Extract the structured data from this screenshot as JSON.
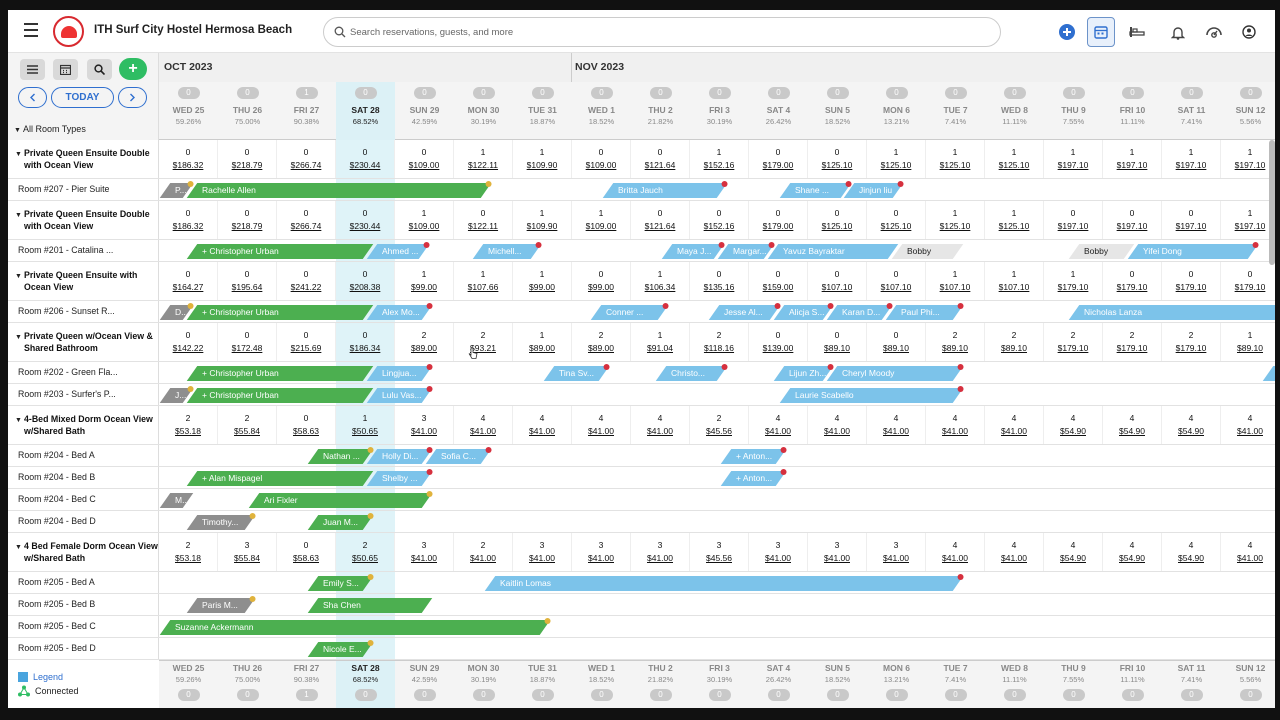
{
  "app": {
    "title": "ITH Surf City Hostel Hermosa Beach",
    "search_placeholder": "Search reservations, guests, and more"
  },
  "toolbar": {
    "today_label": "TODAY",
    "plus_label": "+",
    "filter_label": "All Room Types"
  },
  "months": [
    {
      "label": "OCT 2023"
    },
    {
      "label": "NOV 2023"
    }
  ],
  "days": [
    {
      "name": "WED 25",
      "pct": "59.26%",
      "count": "0"
    },
    {
      "name": "THU 26",
      "pct": "75.00%",
      "count": "0"
    },
    {
      "name": "FRI 27",
      "pct": "90.38%",
      "count": "1"
    },
    {
      "name": "SAT 28",
      "pct": "68.52%",
      "count": "0"
    },
    {
      "name": "SUN 29",
      "pct": "42.59%",
      "count": "0"
    },
    {
      "name": "MON 30",
      "pct": "30.19%",
      "count": "0"
    },
    {
      "name": "TUE 31",
      "pct": "18.87%",
      "count": "0"
    },
    {
      "name": "WED 1",
      "pct": "18.52%",
      "count": "0"
    },
    {
      "name": "THU 2",
      "pct": "21.82%",
      "count": "0"
    },
    {
      "name": "FRI 3",
      "pct": "30.19%",
      "count": "0"
    },
    {
      "name": "SAT 4",
      "pct": "26.42%",
      "count": "0"
    },
    {
      "name": "SUN 5",
      "pct": "18.52%",
      "count": "0"
    },
    {
      "name": "MON 6",
      "pct": "13.21%",
      "count": "0"
    },
    {
      "name": "TUE 7",
      "pct": "7.41%",
      "count": "0"
    },
    {
      "name": "WED 8",
      "pct": "11.11%",
      "count": "0"
    },
    {
      "name": "THU 9",
      "pct": "7.55%",
      "count": "0"
    },
    {
      "name": "FRI 10",
      "pct": "11.11%",
      "count": "0"
    },
    {
      "name": "SAT 11",
      "pct": "7.41%",
      "count": "0"
    },
    {
      "name": "SUN 12",
      "pct": "5.56%",
      "count": "0"
    }
  ],
  "today_index": 3,
  "rows": [
    {
      "kind": "type",
      "label": "Private Queen Ensuite Double with Ocean View",
      "h": 39,
      "cells": [
        [
          "0",
          "$186.32"
        ],
        [
          "0",
          "$218.79"
        ],
        [
          "0",
          "$266.74"
        ],
        [
          "0",
          "$230.44"
        ],
        [
          "0",
          "$109.00"
        ],
        [
          "1",
          "$122.11"
        ],
        [
          "1",
          "$109.90"
        ],
        [
          "0",
          "$109.00"
        ],
        [
          "0",
          "$121.64"
        ],
        [
          "1",
          "$152.16"
        ],
        [
          "0",
          "$179.00"
        ],
        [
          "0",
          "$125.10"
        ],
        [
          "1",
          "$125.10"
        ],
        [
          "1",
          "$125.10"
        ],
        [
          "1",
          "$125.10"
        ],
        [
          "1",
          "$197.10"
        ],
        [
          "1",
          "$197.10"
        ],
        [
          "1",
          "$197.10"
        ],
        [
          "1",
          "$197.10"
        ]
      ]
    },
    {
      "kind": "room",
      "label": "Room #207 - Pier Suite",
      "h": 22,
      "bars": [
        {
          "s": 0,
          "e": 0.45,
          "c": "gr",
          "t": "P...",
          "d": "y"
        },
        {
          "s": 0.45,
          "e": 5.5,
          "c": "g",
          "t": "Rachelle Allen",
          "d": "y"
        },
        {
          "s": 7.5,
          "e": 9.5,
          "c": "b",
          "t": "Britta Jauch",
          "d": "r"
        },
        {
          "s": 10.5,
          "e": 11.6,
          "c": "b",
          "t": "Shane ...",
          "d": "r"
        },
        {
          "s": 11.6,
          "e": 12.5,
          "c": "b",
          "t": "Jinjun liu",
          "d": "r"
        }
      ]
    },
    {
      "kind": "type",
      "label": "Private Queen Ensuite Double with Ocean View",
      "h": 39,
      "cells": [
        [
          "0",
          "$186.32"
        ],
        [
          "0",
          "$218.79"
        ],
        [
          "0",
          "$266.74"
        ],
        [
          "0",
          "$230.44"
        ],
        [
          "1",
          "$109.00"
        ],
        [
          "0",
          "$122.11"
        ],
        [
          "1",
          "$109.90"
        ],
        [
          "1",
          "$109.00"
        ],
        [
          "0",
          "$121.64"
        ],
        [
          "0",
          "$152.16"
        ],
        [
          "0",
          "$179.00"
        ],
        [
          "0",
          "$125.10"
        ],
        [
          "0",
          "$125.10"
        ],
        [
          "1",
          "$125.10"
        ],
        [
          "1",
          "$125.10"
        ],
        [
          "0",
          "$197.10"
        ],
        [
          "0",
          "$197.10"
        ],
        [
          "0",
          "$197.10"
        ],
        [
          "1",
          "$197.10"
        ]
      ]
    },
    {
      "kind": "room",
      "label": "Room #201 - Catalina ...",
      "h": 22,
      "bars": [
        {
          "s": 0.45,
          "e": 3.5,
          "c": "g",
          "t": "+ Christopher Urban"
        },
        {
          "s": 3.5,
          "e": 4.45,
          "c": "b",
          "t": "Ahmed ...",
          "d": "r"
        },
        {
          "s": 5.3,
          "e": 6.35,
          "c": "b",
          "t": "Michell...",
          "d": "r"
        },
        {
          "s": 8.5,
          "e": 9.45,
          "c": "b",
          "t": "Maya J...",
          "d": "r"
        },
        {
          "s": 9.45,
          "e": 10.3,
          "c": "b",
          "t": "Margar...",
          "d": "r"
        },
        {
          "s": 10.3,
          "e": 12.4,
          "c": "b",
          "t": "Yavuz Bayraktar"
        },
        {
          "s": 12.4,
          "e": 13.5,
          "c": "lg",
          "t": "Bobby"
        },
        {
          "s": 15.4,
          "e": 16.4,
          "c": "lg",
          "t": "Bobby"
        },
        {
          "s": 16.4,
          "e": 18.5,
          "c": "b",
          "t": "Yifei Dong",
          "d": "r"
        }
      ]
    },
    {
      "kind": "type",
      "label": "Private Queen Ensuite with Ocean View",
      "h": 39,
      "cells": [
        [
          "0",
          "$164.27"
        ],
        [
          "0",
          "$195.64"
        ],
        [
          "0",
          "$241.22"
        ],
        [
          "0",
          "$208.38"
        ],
        [
          "1",
          "$99.00"
        ],
        [
          "1",
          "$107.66"
        ],
        [
          "1",
          "$99.00"
        ],
        [
          "0",
          "$99.00"
        ],
        [
          "1",
          "$106.34"
        ],
        [
          "0",
          "$135.16"
        ],
        [
          "0",
          "$159.00"
        ],
        [
          "0",
          "$107.10"
        ],
        [
          "0",
          "$107.10"
        ],
        [
          "1",
          "$107.10"
        ],
        [
          "1",
          "$107.10"
        ],
        [
          "1",
          "$179.10"
        ],
        [
          "0",
          "$179.10"
        ],
        [
          "0",
          "$179.10"
        ],
        [
          "0",
          "$179.10"
        ]
      ]
    },
    {
      "kind": "room",
      "label": "Room #206 - Sunset R...",
      "h": 22,
      "bars": [
        {
          "s": 0,
          "e": 0.45,
          "c": "gr",
          "t": "D...",
          "d": "y"
        },
        {
          "s": 0.45,
          "e": 3.5,
          "c": "g",
          "t": "+ Christopher Urban"
        },
        {
          "s": 3.5,
          "e": 4.5,
          "c": "b",
          "t": "Alex Mo...",
          "d": "r"
        },
        {
          "s": 7.3,
          "e": 8.5,
          "c": "b",
          "t": "Conner ...",
          "d": "r"
        },
        {
          "s": 9.3,
          "e": 10.4,
          "c": "b",
          "t": "Jesse Al...",
          "d": "r"
        },
        {
          "s": 10.4,
          "e": 11.3,
          "c": "b",
          "t": "Alicja S...",
          "d": "r"
        },
        {
          "s": 11.3,
          "e": 12.3,
          "c": "b",
          "t": "Karan D...",
          "d": "r"
        },
        {
          "s": 12.3,
          "e": 13.5,
          "c": "b",
          "t": "Paul Phi...",
          "d": "r"
        },
        {
          "s": 15.4,
          "e": 19.2,
          "c": "b",
          "t": "Nicholas Lanza"
        }
      ]
    },
    {
      "kind": "type",
      "label": "Private Queen w/Ocean View & Shared Bathroom",
      "h": 39,
      "cells": [
        [
          "0",
          "$142.22"
        ],
        [
          "0",
          "$172.48"
        ],
        [
          "0",
          "$215.69"
        ],
        [
          "0",
          "$186.34"
        ],
        [
          "2",
          "$89.00"
        ],
        [
          "2",
          "$93.21"
        ],
        [
          "1",
          "$89.00"
        ],
        [
          "2",
          "$89.00"
        ],
        [
          "1",
          "$91.04"
        ],
        [
          "2",
          "$118.16"
        ],
        [
          "0",
          "$139.00"
        ],
        [
          "0",
          "$89.10"
        ],
        [
          "0",
          "$89.10"
        ],
        [
          "2",
          "$89.10"
        ],
        [
          "2",
          "$89.10"
        ],
        [
          "2",
          "$179.10"
        ],
        [
          "2",
          "$179.10"
        ],
        [
          "2",
          "$179.10"
        ],
        [
          "1",
          "$89.10"
        ]
      ]
    },
    {
      "kind": "room",
      "label": "Room #202 - Green Fla...",
      "h": 22,
      "bars": [
        {
          "s": 0.45,
          "e": 3.5,
          "c": "g",
          "t": "+ Christopher Urban"
        },
        {
          "s": 3.5,
          "e": 4.5,
          "c": "b",
          "t": "Lingjua...",
          "d": "r"
        },
        {
          "s": 6.5,
          "e": 7.5,
          "c": "b",
          "t": "Tina Sv...",
          "d": "r"
        },
        {
          "s": 8.4,
          "e": 9.5,
          "c": "b",
          "t": "Christo...",
          "d": "r"
        },
        {
          "s": 10.4,
          "e": 11.3,
          "c": "b",
          "t": "Lijun Zh...",
          "d": "r"
        },
        {
          "s": 11.3,
          "e": 13.5,
          "c": "b",
          "t": "Cheryl Moody",
          "d": "r"
        },
        {
          "s": 18.7,
          "e": 19.3,
          "c": "b",
          "t": "Co..."
        }
      ]
    },
    {
      "kind": "room",
      "label": "Room #203 - Surfer's P...",
      "h": 22,
      "bars": [
        {
          "s": 0,
          "e": 0.45,
          "c": "gr",
          "t": "J...",
          "d": "y"
        },
        {
          "s": 0.45,
          "e": 3.5,
          "c": "g",
          "t": "+ Christopher Urban"
        },
        {
          "s": 3.5,
          "e": 4.5,
          "c": "b",
          "t": "Lulu Vas...",
          "d": "r"
        },
        {
          "s": 10.5,
          "e": 13.5,
          "c": "b",
          "t": "Laurie Scabello",
          "d": "r"
        }
      ]
    },
    {
      "kind": "type",
      "label": "4-Bed Mixed Dorm Ocean View w/Shared Bath",
      "h": 39,
      "cells": [
        [
          "2",
          "$53.18"
        ],
        [
          "2",
          "$55.84"
        ],
        [
          "0",
          "$58.63"
        ],
        [
          "1",
          "$50.65"
        ],
        [
          "3",
          "$41.00"
        ],
        [
          "4",
          "$41.00"
        ],
        [
          "4",
          "$41.00"
        ],
        [
          "4",
          "$41.00"
        ],
        [
          "4",
          "$41.00"
        ],
        [
          "2",
          "$45.56"
        ],
        [
          "4",
          "$41.00"
        ],
        [
          "4",
          "$41.00"
        ],
        [
          "4",
          "$41.00"
        ],
        [
          "4",
          "$41.00"
        ],
        [
          "4",
          "$41.00"
        ],
        [
          "4",
          "$54.90"
        ],
        [
          "4",
          "$54.90"
        ],
        [
          "4",
          "$54.90"
        ],
        [
          "4",
          "$41.00"
        ]
      ]
    },
    {
      "kind": "room",
      "label": "Room #204 - Bed A",
      "h": 22,
      "bars": [
        {
          "s": 2.5,
          "e": 3.5,
          "c": "g",
          "t": "Nathan ...",
          "d": "y"
        },
        {
          "s": 3.5,
          "e": 4.5,
          "c": "b",
          "t": "Holly Di...",
          "d": "r"
        },
        {
          "s": 4.5,
          "e": 5.5,
          "c": "b",
          "t": "Sofia C...",
          "d": "r"
        },
        {
          "s": 9.5,
          "e": 10.5,
          "c": "b",
          "t": "+ Anton...",
          "d": "r"
        }
      ]
    },
    {
      "kind": "room",
      "label": "Room #204 - Bed B",
      "h": 22,
      "bars": [
        {
          "s": 0.45,
          "e": 3.5,
          "c": "g",
          "t": "+ Alan Mispagel"
        },
        {
          "s": 3.5,
          "e": 4.5,
          "c": "b",
          "t": "Shelby ...",
          "d": "r"
        },
        {
          "s": 9.5,
          "e": 10.5,
          "c": "b",
          "t": "+ Anton...",
          "d": "r"
        }
      ]
    },
    {
      "kind": "room",
      "label": "Room #204 - Bed C",
      "h": 22,
      "bars": [
        {
          "s": 0,
          "e": 0.45,
          "c": "gr",
          "t": "M..."
        },
        {
          "s": 1.5,
          "e": 4.5,
          "c": "g",
          "t": "Ari Fixler",
          "d": "y"
        }
      ]
    },
    {
      "kind": "room",
      "label": "Room #204 - Bed D",
      "h": 22,
      "bars": [
        {
          "s": 0.45,
          "e": 1.5,
          "c": "gr",
          "t": "Timothy...",
          "d": "y"
        },
        {
          "s": 2.5,
          "e": 3.5,
          "c": "g",
          "t": "Juan M...",
          "d": "y"
        }
      ]
    },
    {
      "kind": "type",
      "label": "4 Bed Female Dorm Ocean View w/Shared Bath",
      "h": 39,
      "cells": [
        [
          "2",
          "$53.18"
        ],
        [
          "3",
          "$55.84"
        ],
        [
          "0",
          "$58.63"
        ],
        [
          "2",
          "$50.65"
        ],
        [
          "3",
          "$41.00"
        ],
        [
          "2",
          "$41.00"
        ],
        [
          "3",
          "$41.00"
        ],
        [
          "3",
          "$41.00"
        ],
        [
          "3",
          "$41.00"
        ],
        [
          "3",
          "$45.56"
        ],
        [
          "3",
          "$41.00"
        ],
        [
          "3",
          "$41.00"
        ],
        [
          "3",
          "$41.00"
        ],
        [
          "4",
          "$41.00"
        ],
        [
          "4",
          "$41.00"
        ],
        [
          "4",
          "$54.90"
        ],
        [
          "4",
          "$54.90"
        ],
        [
          "4",
          "$54.90"
        ],
        [
          "4",
          "$41.00"
        ]
      ]
    },
    {
      "kind": "room",
      "label": "Room #205 - Bed A",
      "h": 22,
      "bars": [
        {
          "s": 2.5,
          "e": 3.5,
          "c": "g",
          "t": "Emily S...",
          "d": "y"
        },
        {
          "s": 5.5,
          "e": 13.5,
          "c": "b",
          "t": "Kaitlin Lomas",
          "d": "r"
        }
      ]
    },
    {
      "kind": "room",
      "label": "Room #205 - Bed B",
      "h": 22,
      "bars": [
        {
          "s": 0.45,
          "e": 1.5,
          "c": "gr",
          "t": "Paris M...",
          "d": "y"
        },
        {
          "s": 2.5,
          "e": 4.5,
          "c": "g",
          "t": "Sha Chen"
        }
      ]
    },
    {
      "kind": "room",
      "label": "Room #205 - Bed C",
      "h": 22,
      "bars": [
        {
          "s": 0,
          "e": 6.5,
          "c": "g",
          "t": "Suzanne Ackermann",
          "d": "y"
        }
      ]
    },
    {
      "kind": "room",
      "label": "Room #205 - Bed D",
      "h": 22,
      "bars": [
        {
          "s": 2.5,
          "e": 3.5,
          "c": "g",
          "t": "Nicole E...",
          "d": "y"
        }
      ]
    }
  ],
  "legend": {
    "legend_label": "Legend",
    "connected_label": "Connected"
  },
  "colors": {
    "confirmed": "#4caf50",
    "upcoming": "#7cc3ea",
    "past": "#8e8e8e",
    "accent": "#2f6fcf",
    "today": "#dff3f8"
  }
}
